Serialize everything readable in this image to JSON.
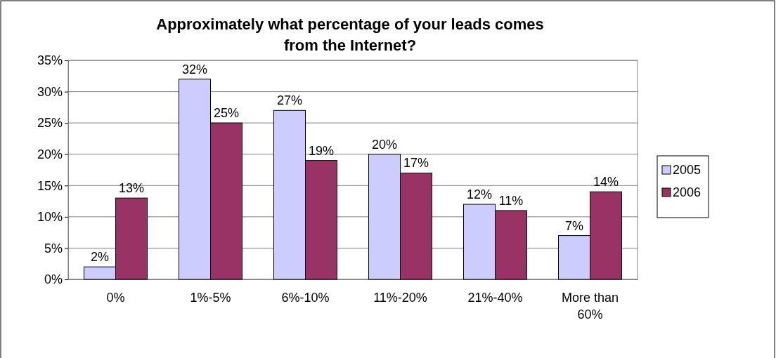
{
  "chart_data": {
    "type": "bar",
    "title": "Approximately what percentage of your leads comes from the Internet?",
    "categories": [
      "0%",
      "1%-5%",
      "6%-10%",
      "11%-20%",
      "21%-40%",
      "More than 60%"
    ],
    "series": [
      {
        "name": "2005",
        "color": "#ccccff",
        "values": [
          2,
          32,
          27,
          20,
          12,
          7
        ],
        "value_labels": [
          "2%",
          "32%",
          "27%",
          "20%",
          "12%",
          "7%"
        ]
      },
      {
        "name": "2006",
        "color": "#993366",
        "values": [
          13,
          25,
          19,
          17,
          11,
          14
        ],
        "value_labels": [
          "13%",
          "25%",
          "19%",
          "17%",
          "11%",
          "14%"
        ]
      }
    ],
    "ylim": [
      0,
      35
    ],
    "yticks": [
      {
        "value": 0,
        "label": "0%"
      },
      {
        "value": 5,
        "label": "5%"
      },
      {
        "value": 10,
        "label": "10%"
      },
      {
        "value": 15,
        "label": "15%"
      },
      {
        "value": 20,
        "label": "20%"
      },
      {
        "value": 25,
        "label": "25%"
      },
      {
        "value": 30,
        "label": "30%"
      },
      {
        "value": 35,
        "label": "35%"
      }
    ],
    "grid": "y",
    "legend": "right"
  }
}
